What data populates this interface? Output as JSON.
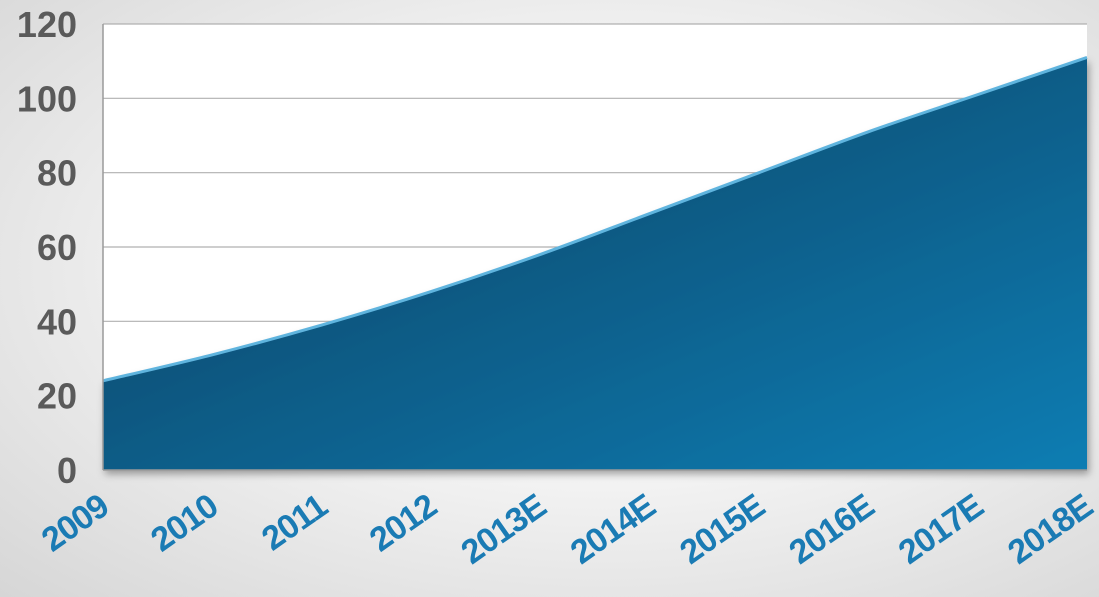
{
  "chart_data": {
    "type": "area",
    "title": "",
    "xlabel": "",
    "ylabel": "",
    "categories": [
      "2009",
      "2010",
      "2011",
      "2012",
      "2013E",
      "2014E",
      "2015E",
      "2016E",
      "2017E",
      "2018E"
    ],
    "values": [
      24,
      31,
      39,
      48,
      58,
      69,
      80,
      91,
      101,
      111
    ],
    "ylim": [
      0,
      120
    ],
    "yticks": [
      "0",
      "20",
      "40",
      "60",
      "80",
      "100",
      "120"
    ],
    "grid": true,
    "legend": "none",
    "colors": {
      "fill_top": "#0a7db3",
      "fill_bottom": "#0b3b5a",
      "edge": "#5fb4de",
      "grid": "#b0b0b0",
      "y_tick_text": "#5a5a5a",
      "x_tick_text": "#1a7bb4"
    }
  }
}
